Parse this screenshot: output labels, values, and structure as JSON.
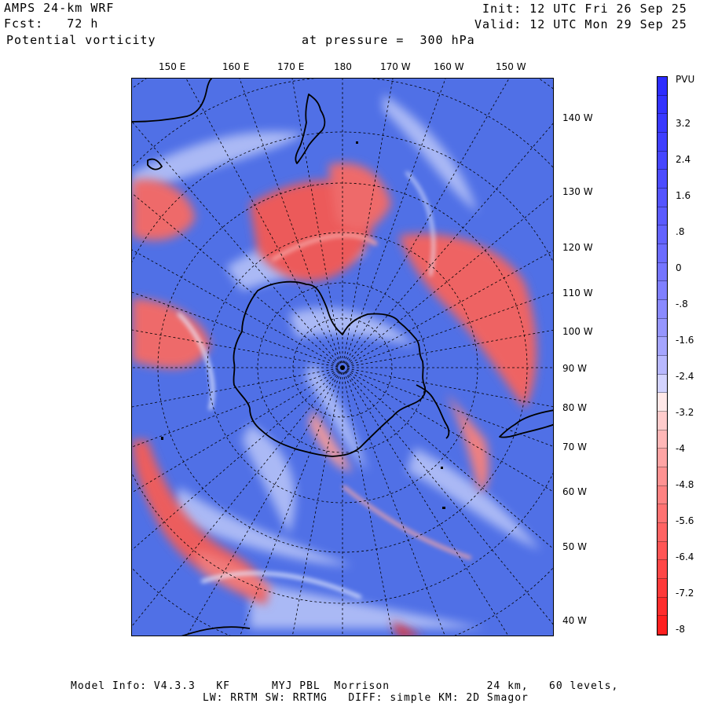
{
  "header": {
    "model": "AMPS 24-km WRF",
    "forecast": "Fcst:   72 h",
    "field": "Potential vorticity",
    "pressure": "at pressure =  300 hPa",
    "init": "Init: 12 UTC Fri 26 Sep 25",
    "valid": "Valid: 12 UTC Mon 29 Sep 25"
  },
  "map": {
    "top_longitudes": [
      "150 E",
      "160 E",
      "170 E",
      "180",
      "170 W",
      "160 W",
      "150 W"
    ],
    "right_longitudes": [
      "140 W",
      "130 W",
      "120 W",
      "110 W",
      "100 W",
      "90 W",
      "80 W",
      "70 W",
      "60 W",
      "50 W",
      "40 W"
    ]
  },
  "colorbar": {
    "unit": "PVU",
    "tick_labels": [
      "3.2",
      "2.4",
      "1.6",
      ".8",
      "0",
      "-.8",
      "-1.6",
      "-2.4",
      "-3.2",
      "-4",
      "-4.8",
      "-5.6",
      "-6.4",
      "-7.2",
      "-8"
    ],
    "min": -8,
    "max": 4,
    "step": 0.4,
    "low_color": "#ff1a1a",
    "mid_color": "#ffffff",
    "high_color": "#2a2aff"
  },
  "footer": {
    "line1": "Model Info: V4.3.3   KF      MYJ PBL  Morrison              24 km,   60 levels,",
    "line2": "LW: RRTM SW: RRTMG   DIFF: simple KM: 2D Smagor"
  },
  "colors": {
    "positive_pv": "#e84a4a",
    "negative_pv": "#4f6fe8",
    "coastline": "#000000",
    "grid": "#000000"
  }
}
